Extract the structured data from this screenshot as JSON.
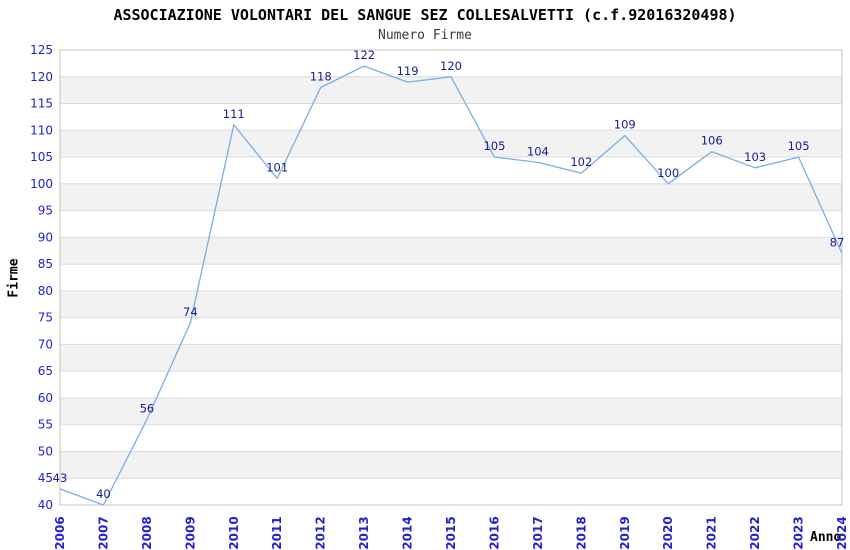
{
  "header": {
    "title": "ASSOCIAZIONE VOLONTARI DEL SANGUE SEZ COLLESALVETTI (c.f.92016320498)",
    "subtitle": "Numero Firme"
  },
  "chart_data": {
    "type": "line",
    "title": "ASSOCIAZIONE VOLONTARI DEL SANGUE SEZ COLLESALVETTI (c.f.92016320498)",
    "subtitle": "Numero Firme",
    "xlabel": "Anno",
    "ylabel": "Firme",
    "x": [
      2006,
      2007,
      2008,
      2009,
      2010,
      2011,
      2012,
      2013,
      2014,
      2015,
      2016,
      2017,
      2018,
      2019,
      2020,
      2021,
      2022,
      2023,
      2024
    ],
    "values": [
      43,
      40,
      56,
      74,
      111,
      101,
      118,
      122,
      119,
      120,
      105,
      104,
      102,
      109,
      100,
      106,
      103,
      105,
      87
    ],
    "ylim": [
      40,
      125
    ],
    "ytick_step": 5,
    "grid": true,
    "legend_position": "none",
    "banding": "alternating horizontal 5-unit bands",
    "colors": {
      "line": "#7aaee3",
      "data_label": "#1b1b8e",
      "tick_label": "#2222cc",
      "band": "#f2f2f2",
      "gridline": "#dcdcdc",
      "plot_border": "#c4c4c4",
      "title": "#000000",
      "subtitle": "#3a3a3a",
      "axis_title": "#000000",
      "background": "#ffffff"
    }
  }
}
